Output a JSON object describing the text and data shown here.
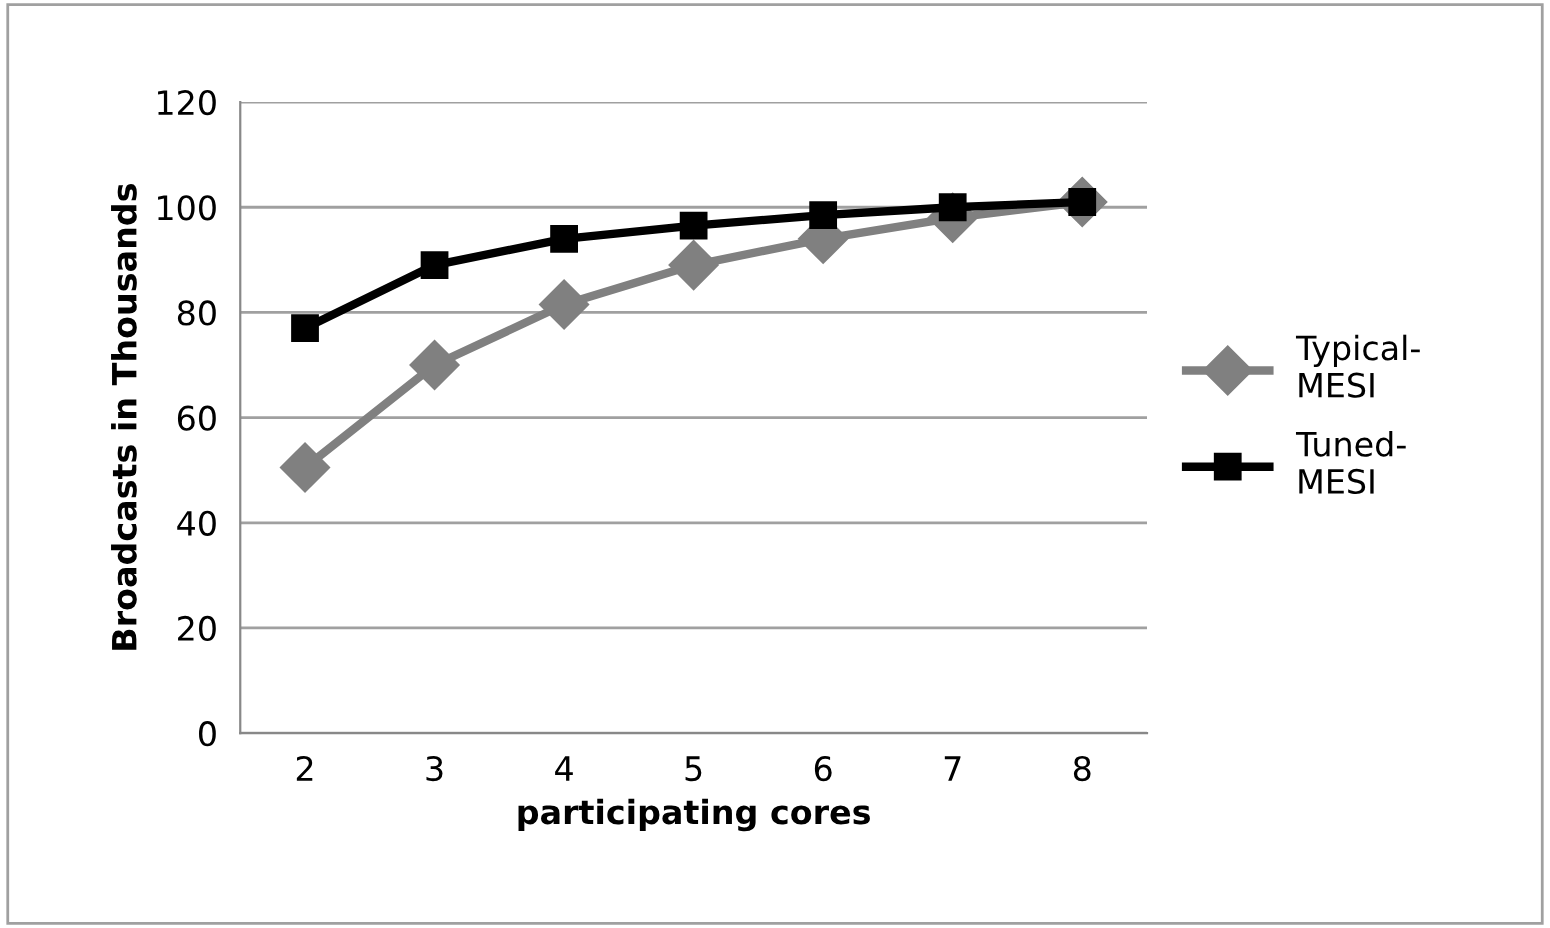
{
  "chart_data": {
    "type": "line",
    "xlabel": "participating cores",
    "ylabel": "Broadcasts in Thousands",
    "categories": [
      "2",
      "3",
      "4",
      "5",
      "6",
      "7",
      "8"
    ],
    "series": [
      {
        "name": "Typical-MESI",
        "color": "#808080",
        "marker": "diamond",
        "values": [
          50.5,
          70,
          81.5,
          89,
          94,
          98,
          101
        ]
      },
      {
        "name": "Tuned-MESI",
        "color": "#000000",
        "marker": "square",
        "values": [
          77,
          89,
          94,
          96.5,
          98.5,
          100,
          101
        ]
      }
    ],
    "ylim": [
      0,
      120
    ],
    "yticks": [
      0,
      20,
      40,
      60,
      80,
      100,
      120
    ],
    "grid": "y",
    "legend": "right",
    "line_style": "solid"
  }
}
